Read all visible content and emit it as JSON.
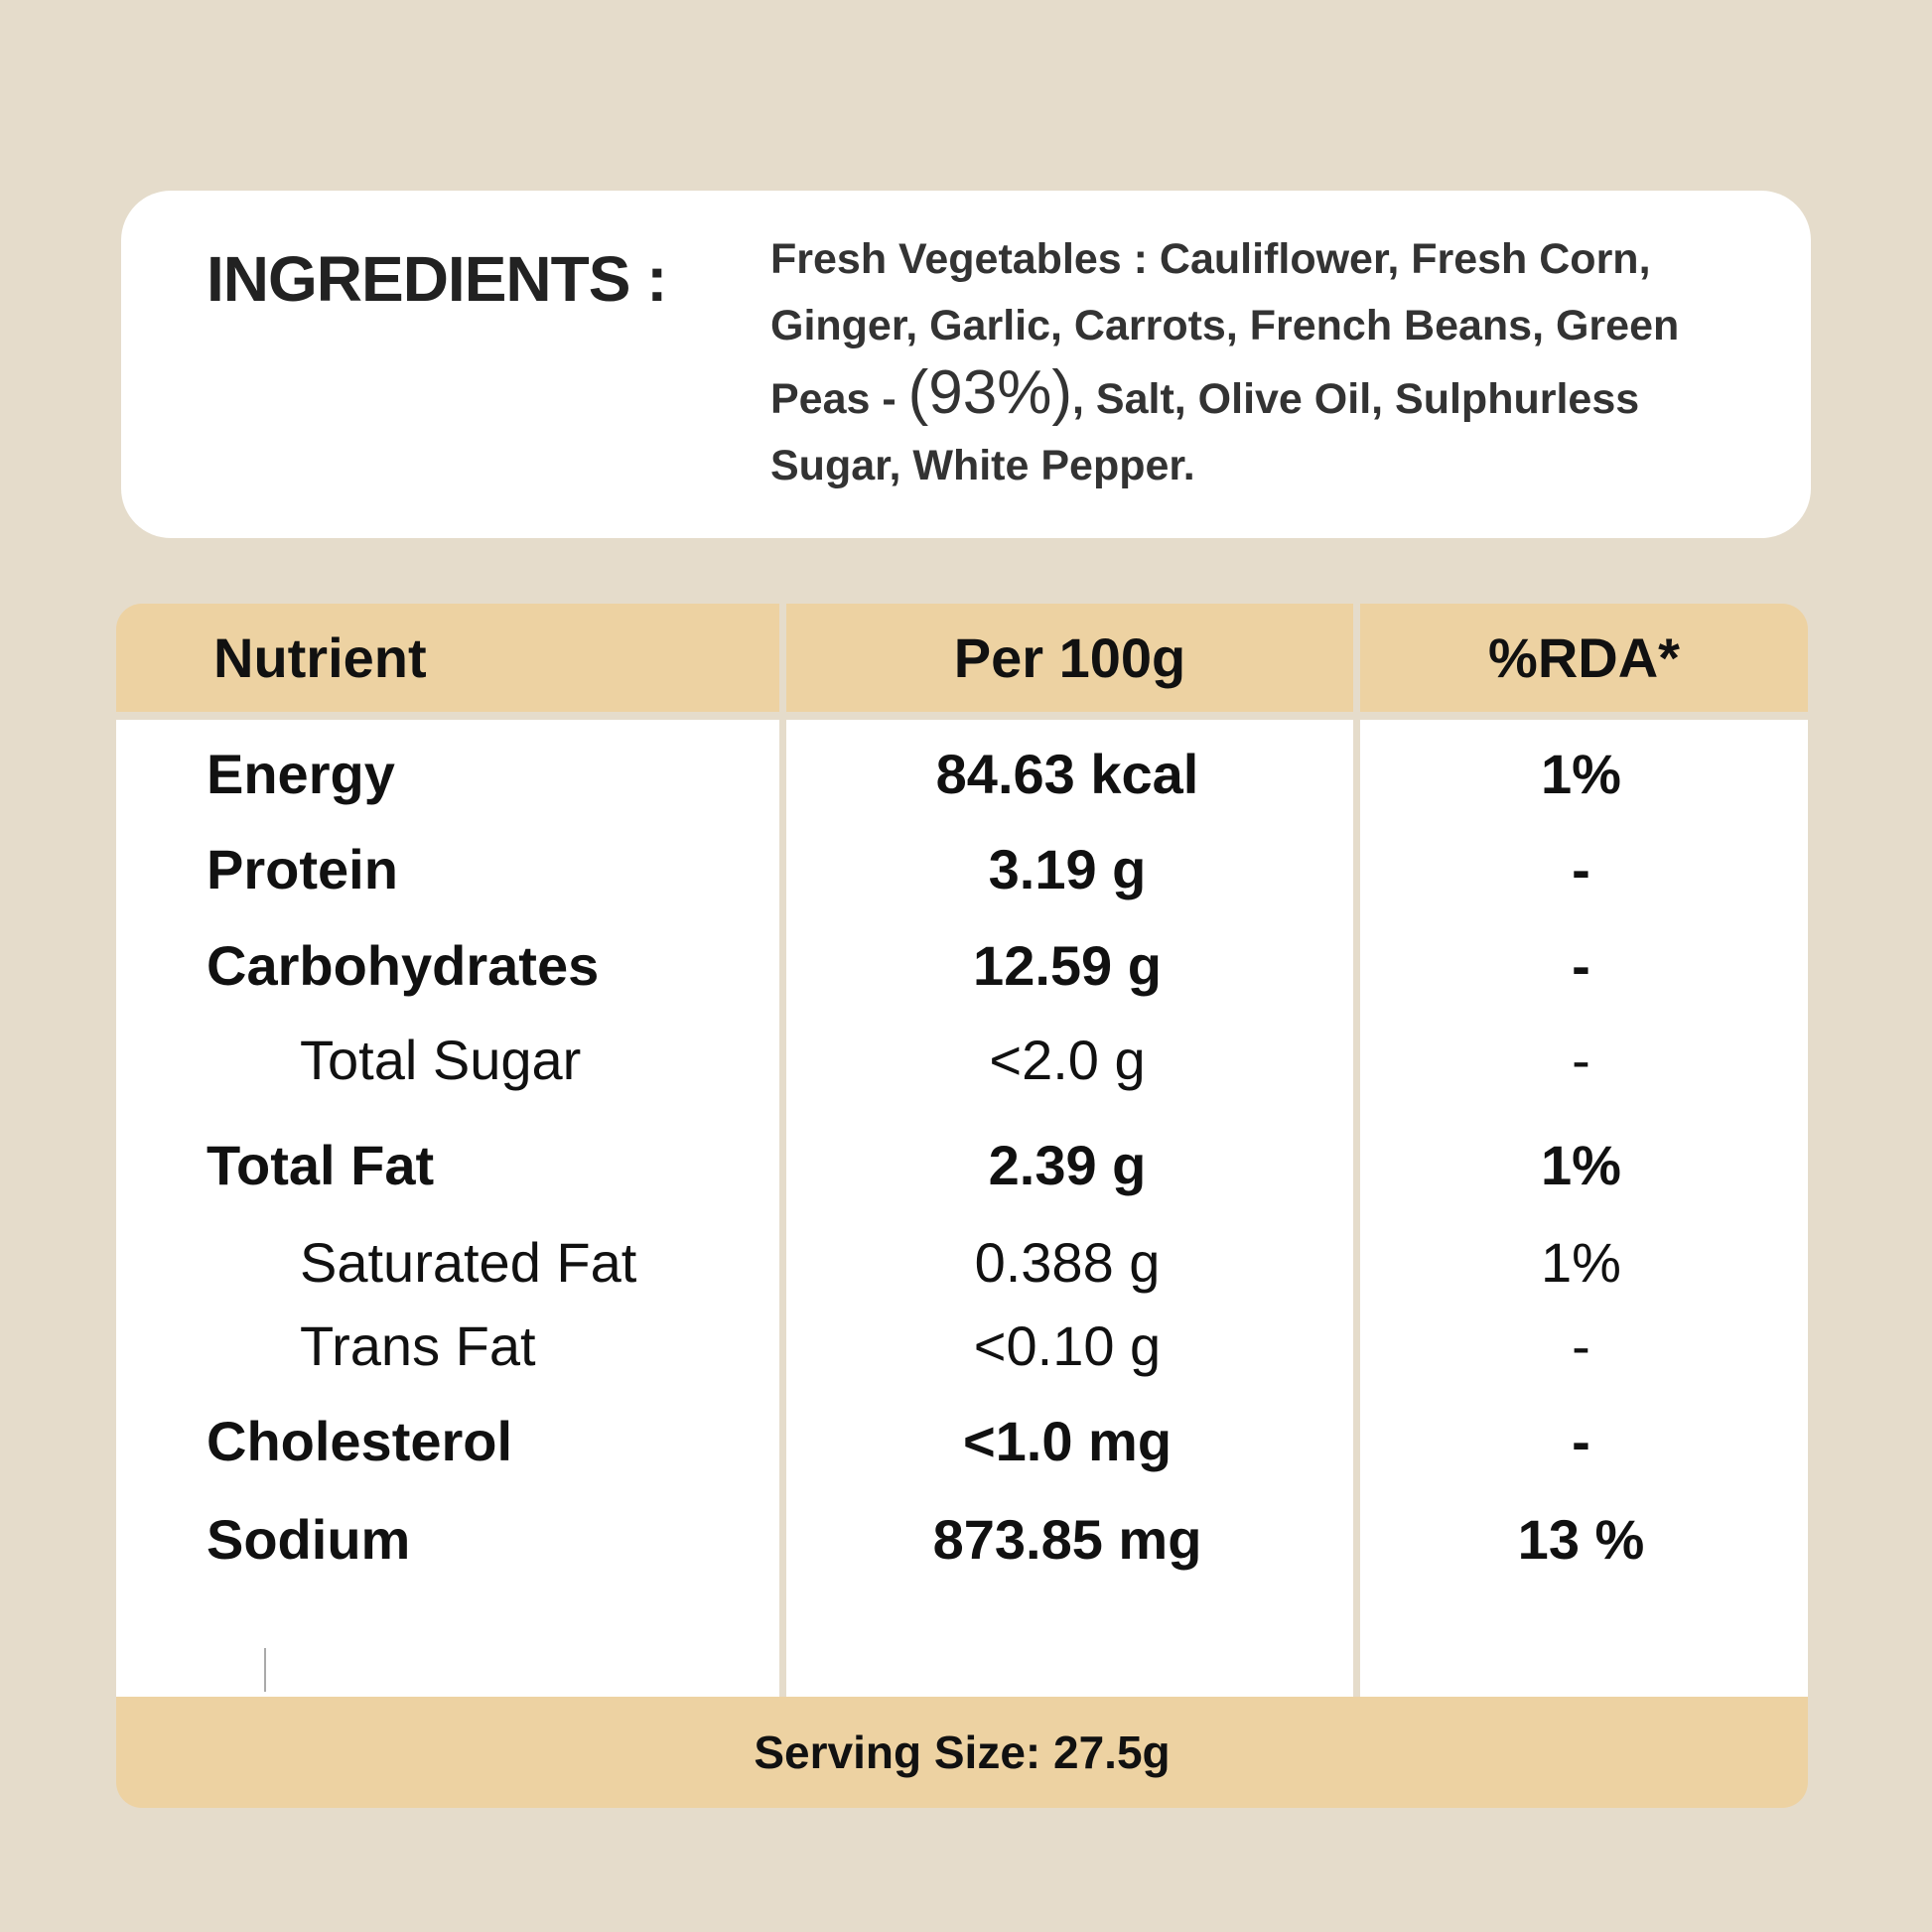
{
  "ingredients": {
    "title": "INGREDIENTS :",
    "text_before": "Fresh Vegetables : Cauliflower, Fresh Corn, Ginger, Garlic, Carrots, French Beans, Green Peas - ",
    "percent": "(93%)",
    "text_after": ", Salt, Olive Oil, Sulphurless Sugar, White Pepper."
  },
  "table": {
    "headers": [
      "Nutrient",
      "Per 100g",
      "%RDA*"
    ],
    "rows": [
      {
        "name": "Energy",
        "value": "84.63 kcal",
        "rda": "1%",
        "sub": false
      },
      {
        "name": "Protein",
        "value": "3.19 g",
        "rda": "-",
        "sub": false
      },
      {
        "name": "Carbohydrates",
        "value": "12.59 g",
        "rda": "-",
        "sub": false
      },
      {
        "name": "Total Sugar",
        "value": "<2.0 g",
        "rda": "-",
        "sub": true
      },
      {
        "name": "Total Fat",
        "value": "2.39 g",
        "rda": "1%",
        "sub": false
      },
      {
        "name": "Saturated Fat",
        "value": "0.388 g",
        "rda": "1%",
        "sub": true
      },
      {
        "name": "Trans Fat",
        "value": "<0.10 g",
        "rda": "-",
        "sub": true
      },
      {
        "name": "Cholesterol",
        "value": "<1.0 mg",
        "rda": "-",
        "sub": false
      },
      {
        "name": "Sodium",
        "value": "873.85 mg",
        "rda": "13 %",
        "sub": false
      }
    ],
    "footer": "Serving Size: 27.5g"
  },
  "colors": {
    "background": "#e5dccb",
    "header": "#edd2a2",
    "card": "#ffffff"
  }
}
